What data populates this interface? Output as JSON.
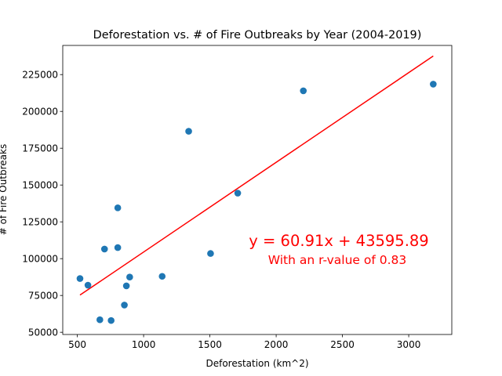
{
  "chart_data": {
    "type": "scatter",
    "title": "Deforestation vs. # of Fire Outbreaks by Year (2004-2019)",
    "xlabel": "Deforestation (km^2)",
    "ylabel": "# of Fire Outbreaks",
    "xlim": [
      390,
      3325
    ],
    "ylim": [
      48500,
      244800
    ],
    "xticks": [
      500,
      1000,
      1500,
      2000,
      2500,
      3000
    ],
    "yticks": [
      50000,
      75000,
      100000,
      125000,
      150000,
      175000,
      200000,
      225000
    ],
    "grid": false,
    "points": [
      {
        "x": 520,
        "y": 86500
      },
      {
        "x": 580,
        "y": 82000
      },
      {
        "x": 670,
        "y": 58500
      },
      {
        "x": 705,
        "y": 106500
      },
      {
        "x": 755,
        "y": 58000
      },
      {
        "x": 805,
        "y": 134500
      },
      {
        "x": 805,
        "y": 107500
      },
      {
        "x": 855,
        "y": 68500
      },
      {
        "x": 870,
        "y": 81500
      },
      {
        "x": 895,
        "y": 87500
      },
      {
        "x": 1140,
        "y": 88000
      },
      {
        "x": 1340,
        "y": 186500
      },
      {
        "x": 1505,
        "y": 103500
      },
      {
        "x": 1710,
        "y": 144500
      },
      {
        "x": 2205,
        "y": 214000
      },
      {
        "x": 3185,
        "y": 218500
      }
    ],
    "regression": {
      "slope": 60.91,
      "intercept": 43595.89,
      "x_range": [
        520,
        3185
      ],
      "color": "#ff0000",
      "equation_label": "y = 60.91x + 43595.89",
      "r_label": "With an r-value of 0.83"
    },
    "marker_color": "#1f77b4"
  }
}
